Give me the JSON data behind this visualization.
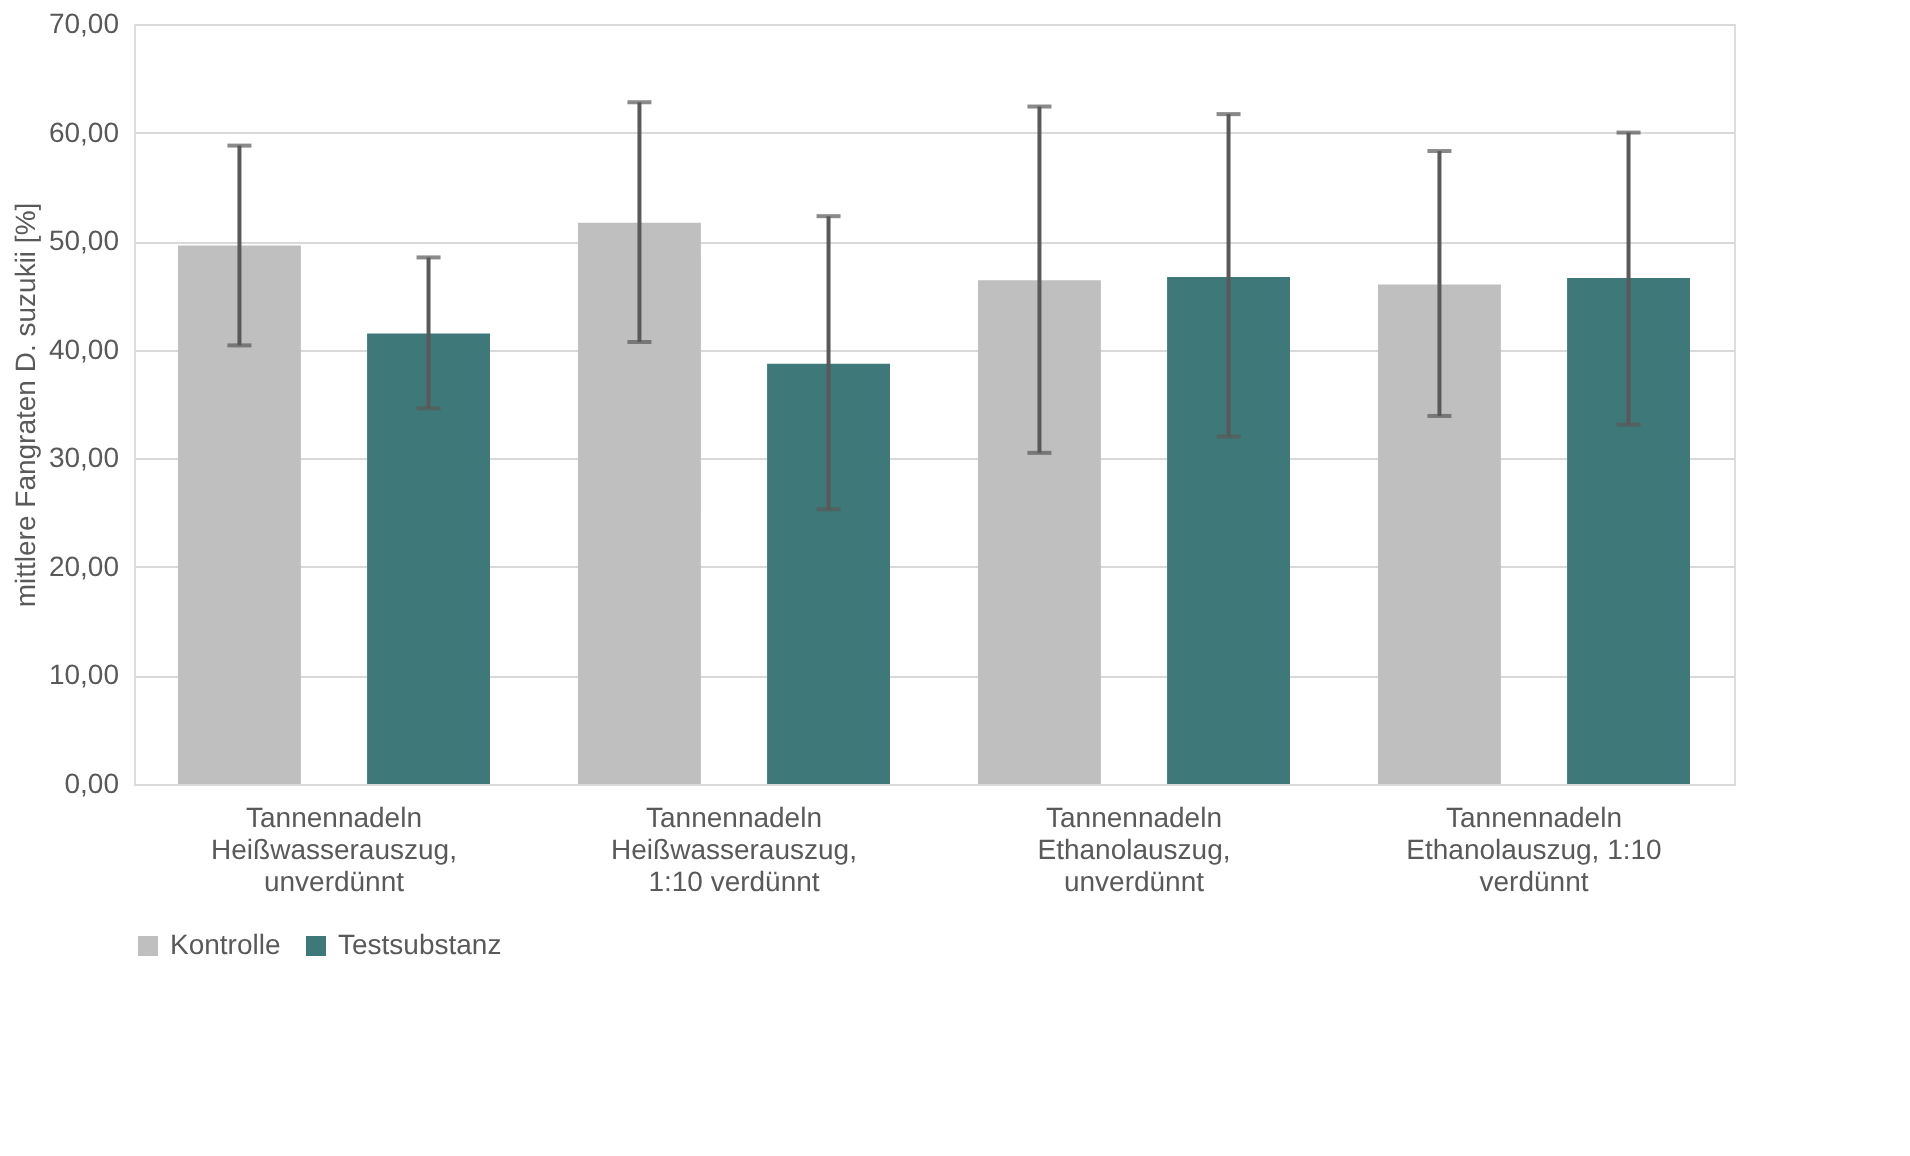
{
  "chart_data": {
    "type": "bar",
    "ylabel": "mittlere Fangraten D. suzukii [%]",
    "categories": [
      "Tannennadeln Heißwasserauszug, unverdünnt",
      "Tannennadeln Heißwasserauszug, 1:10 verdünnt",
      "Tannennadeln Ethanolauszug, unverdünnt",
      "Tannennadeln Ethanolauszug, 1:10 verdünnt"
    ],
    "series": [
      {
        "name": "Kontrolle",
        "color": "#bfbfbf",
        "values": [
          49.6,
          51.7,
          46.4,
          46.0
        ],
        "errors": [
          [
            40.4,
            58.8
          ],
          [
            40.7,
            62.8
          ],
          [
            30.5,
            62.4
          ],
          [
            33.9,
            58.3
          ]
        ]
      },
      {
        "name": "Testsubstanz",
        "color": "#3f7878",
        "values": [
          41.5,
          38.7,
          46.7,
          46.6
        ],
        "errors": [
          [
            34.6,
            48.5
          ],
          [
            25.3,
            52.3
          ],
          [
            32.0,
            61.7
          ],
          [
            33.1,
            60.0
          ]
        ]
      }
    ],
    "ylim": [
      0,
      70
    ],
    "yticks": [
      {
        "value": 0,
        "label": "0,00"
      },
      {
        "value": 10,
        "label": "10,00"
      },
      {
        "value": 20,
        "label": "20,00"
      },
      {
        "value": 30,
        "label": "30,00"
      },
      {
        "value": 40,
        "label": "40,00"
      },
      {
        "value": 50,
        "label": "50,00"
      },
      {
        "value": 60,
        "label": "60,00"
      },
      {
        "value": 70,
        "label": "70,00"
      }
    ],
    "grid": "y",
    "legend": "bottom"
  }
}
